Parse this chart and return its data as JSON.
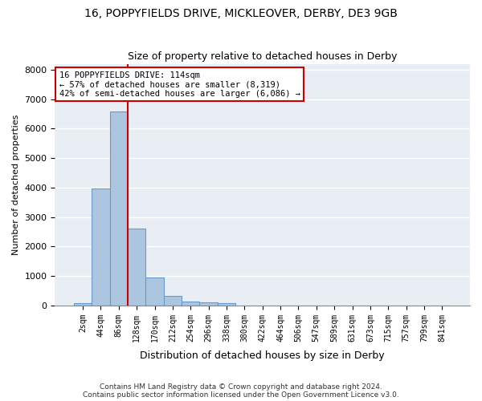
{
  "title": "16, POPPYFIELDS DRIVE, MICKLEOVER, DERBY, DE3 9GB",
  "subtitle": "Size of property relative to detached houses in Derby",
  "xlabel": "Distribution of detached houses by size in Derby",
  "ylabel": "Number of detached properties",
  "bar_values": [
    80,
    3980,
    6580,
    2620,
    960,
    320,
    130,
    110,
    90,
    0,
    0,
    0,
    0,
    0,
    0,
    0,
    0,
    0,
    0,
    0,
    0
  ],
  "bar_labels": [
    "2sqm",
    "44sqm",
    "86sqm",
    "128sqm",
    "170sqm",
    "212sqm",
    "254sqm",
    "296sqm",
    "338sqm",
    "380sqm",
    "422sqm",
    "464sqm",
    "506sqm",
    "547sqm",
    "589sqm",
    "631sqm",
    "673sqm",
    "715sqm",
    "757sqm",
    "799sqm",
    "841sqm"
  ],
  "bar_color": "#adc6e0",
  "bar_edge_color": "#6699cc",
  "vline_x": 2.5,
  "vline_color": "#cc0000",
  "ylim": [
    0,
    8200
  ],
  "yticks": [
    0,
    1000,
    2000,
    3000,
    4000,
    5000,
    6000,
    7000,
    8000
  ],
  "background_color": "#e8eef4",
  "grid_color": "#ffffff",
  "annotation_title": "16 POPPYFIELDS DRIVE: 114sqm",
  "annotation_line1": "← 57% of detached houses are smaller (8,319)",
  "annotation_line2": "42% of semi-detached houses are larger (6,086) →",
  "annotation_box_color": "#cc0000",
  "footnote1": "Contains HM Land Registry data © Crown copyright and database right 2024.",
  "footnote2": "Contains public sector information licensed under the Open Government Licence v3.0."
}
